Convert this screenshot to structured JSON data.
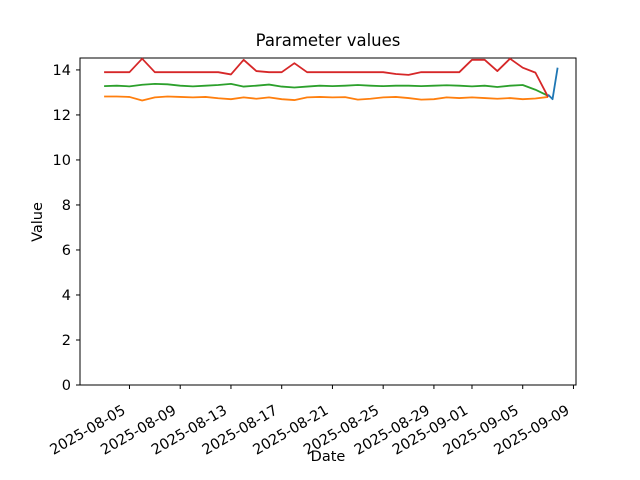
{
  "chart_data": {
    "type": "line",
    "title": "Parameter values",
    "xlabel": "Date",
    "ylabel": "Value",
    "background": "#ffffff",
    "text_color": "#000000",
    "spine_color": "#000000",
    "grid": false,
    "legend": false,
    "x_unit": "days since 2025-08-03 (axis dates shown on tick labels)",
    "xlim": [
      -1.9,
      37.2
    ],
    "ylim": [
      0,
      14.53
    ],
    "yticks": [
      0,
      2,
      4,
      6,
      8,
      10,
      12,
      14
    ],
    "xticks": [
      {
        "day": 2,
        "label": "2025-08-05"
      },
      {
        "day": 6,
        "label": "2025-08-09"
      },
      {
        "day": 10,
        "label": "2025-08-13"
      },
      {
        "day": 14,
        "label": "2025-08-17"
      },
      {
        "day": 18,
        "label": "2025-08-21"
      },
      {
        "day": 22,
        "label": "2025-08-25"
      },
      {
        "day": 26,
        "label": "2025-08-29"
      },
      {
        "day": 29,
        "label": "2025-09-01"
      },
      {
        "day": 33,
        "label": "2025-09-05"
      },
      {
        "day": 37,
        "label": "2025-09-09"
      }
    ],
    "series": [
      {
        "name": "orange",
        "color": "#ff7f0e",
        "x": [
          0,
          1,
          2,
          3,
          4,
          5,
          6,
          7,
          8,
          9,
          10,
          11,
          12,
          13,
          14,
          15,
          16,
          17,
          18,
          19,
          20,
          21,
          22,
          23,
          24,
          25,
          26,
          27,
          28,
          29,
          30,
          31,
          32,
          33,
          34,
          35
        ],
        "y": [
          12.82,
          12.82,
          12.8,
          12.64,
          12.78,
          12.82,
          12.8,
          12.78,
          12.8,
          12.74,
          12.7,
          12.78,
          12.72,
          12.78,
          12.7,
          12.66,
          12.78,
          12.8,
          12.78,
          12.79,
          12.68,
          12.72,
          12.78,
          12.8,
          12.75,
          12.68,
          12.7,
          12.78,
          12.75,
          12.78,
          12.75,
          12.72,
          12.75,
          12.7,
          12.73,
          12.8
        ]
      },
      {
        "name": "green",
        "color": "#2ca02c",
        "x": [
          0,
          1,
          2,
          3,
          4,
          5,
          6,
          7,
          8,
          9,
          10,
          11,
          12,
          13,
          14,
          15,
          16,
          17,
          18,
          19,
          20,
          21,
          22,
          23,
          24,
          25,
          26,
          27,
          28,
          29,
          30,
          31,
          32,
          33,
          34,
          35
        ],
        "y": [
          13.28,
          13.3,
          13.27,
          13.34,
          13.38,
          13.36,
          13.3,
          13.27,
          13.3,
          13.33,
          13.38,
          13.26,
          13.3,
          13.35,
          13.26,
          13.22,
          13.26,
          13.3,
          13.28,
          13.3,
          13.33,
          13.3,
          13.28,
          13.3,
          13.3,
          13.28,
          13.3,
          13.32,
          13.3,
          13.27,
          13.3,
          13.24,
          13.3,
          13.33,
          13.12,
          12.85
        ]
      },
      {
        "name": "red",
        "color": "#d62728",
        "x": [
          0,
          1,
          2,
          3,
          4,
          5,
          6,
          7,
          8,
          9,
          10,
          11,
          12,
          13,
          14,
          15,
          16,
          17,
          18,
          19,
          20,
          21,
          22,
          23,
          24,
          25,
          26,
          27,
          28,
          29,
          30,
          31,
          32,
          33,
          34,
          35
        ],
        "y": [
          13.9,
          13.9,
          13.9,
          14.5,
          13.9,
          13.9,
          13.9,
          13.9,
          13.9,
          13.9,
          13.8,
          14.45,
          13.95,
          13.9,
          13.9,
          14.3,
          13.9,
          13.9,
          13.9,
          13.9,
          13.9,
          13.9,
          13.9,
          13.82,
          13.78,
          13.9,
          13.9,
          13.9,
          13.9,
          14.45,
          14.45,
          13.95,
          14.5,
          14.1,
          13.88,
          12.8
        ]
      },
      {
        "name": "blue",
        "color": "#1f77b4",
        "x": [
          35.0,
          35.35,
          35.75
        ],
        "y": [
          12.9,
          12.7,
          14.1
        ]
      }
    ]
  }
}
